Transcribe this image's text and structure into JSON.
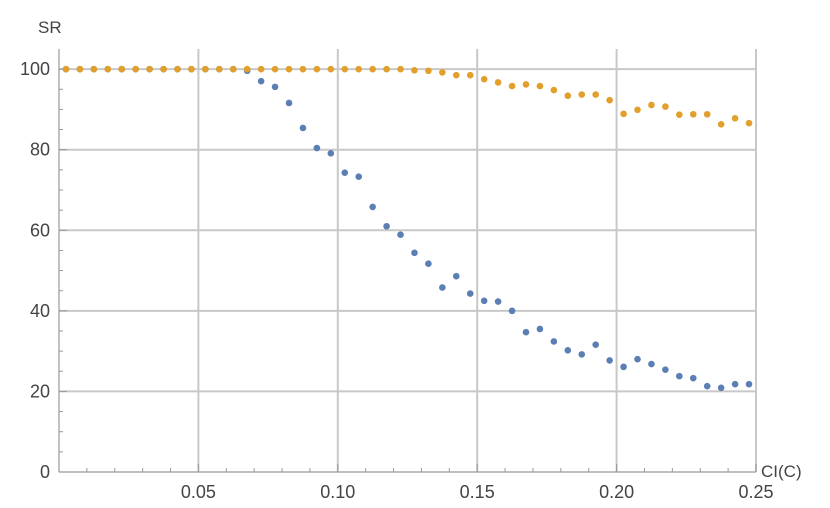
{
  "chart_data": {
    "type": "scatter",
    "xlabel": "CI(C)",
    "ylabel": "SR",
    "xlim": [
      0,
      0.25
    ],
    "ylim": [
      0,
      105
    ],
    "x_ticks": [
      0.05,
      0.1,
      0.15,
      0.2,
      0.25
    ],
    "x_tick_labels": [
      "0.05",
      "0.10",
      "0.15",
      "0.20",
      "0.25"
    ],
    "y_ticks": [
      0,
      20,
      40,
      60,
      80,
      100
    ],
    "y_tick_labels": [
      "0",
      "20",
      "40",
      "60",
      "80",
      "100"
    ],
    "grid": true,
    "series": [
      {
        "color": "#5b7fb4",
        "x": [
          0.0025,
          0.0075,
          0.0125,
          0.0175,
          0.0225,
          0.0275,
          0.0325,
          0.0375,
          0.0425,
          0.0475,
          0.0525,
          0.0575,
          0.0625,
          0.0675,
          0.0725,
          0.0775,
          0.0825,
          0.0875,
          0.0925,
          0.0975,
          0.1025,
          0.1075,
          0.1125,
          0.1175,
          0.1225,
          0.1275,
          0.1325,
          0.1375,
          0.1425,
          0.1475,
          0.1525,
          0.1575,
          0.1625,
          0.1675,
          0.1725,
          0.1775,
          0.1825,
          0.1875,
          0.1925,
          0.1975,
          0.2025,
          0.2075,
          0.2125,
          0.2175,
          0.2225,
          0.2275,
          0.2325,
          0.2375,
          0.2425,
          0.2475
        ],
        "y": [
          100,
          100,
          100,
          100,
          100,
          100,
          100,
          100,
          100,
          100,
          100,
          100,
          100,
          99.6,
          97.0,
          95.6,
          91.6,
          85.4,
          80.4,
          79.1,
          74.3,
          73.3,
          65.8,
          61.0,
          58.9,
          54.4,
          51.7,
          45.8,
          48.6,
          44.3,
          42.5,
          42.3,
          40.0,
          34.7,
          35.5,
          32.4,
          30.2,
          29.2,
          31.6,
          27.7,
          26.1,
          28.0,
          26.8,
          25.4,
          23.8,
          23.3,
          21.3,
          20.9,
          21.8,
          21.8
        ]
      },
      {
        "color": "#e19f2b",
        "x": [
          0.0025,
          0.0075,
          0.0125,
          0.0175,
          0.0225,
          0.0275,
          0.0325,
          0.0375,
          0.0425,
          0.0475,
          0.0525,
          0.0575,
          0.0625,
          0.0675,
          0.0725,
          0.0775,
          0.0825,
          0.0875,
          0.0925,
          0.0975,
          0.1025,
          0.1075,
          0.1125,
          0.1175,
          0.1225,
          0.1275,
          0.1325,
          0.1375,
          0.1425,
          0.1475,
          0.1525,
          0.1575,
          0.1625,
          0.1675,
          0.1725,
          0.1775,
          0.1825,
          0.1875,
          0.1925,
          0.1975,
          0.2025,
          0.2075,
          0.2125,
          0.2175,
          0.2225,
          0.2275,
          0.2325,
          0.2375,
          0.2425,
          0.2475
        ],
        "y": [
          100,
          100,
          100,
          100,
          100,
          100,
          100,
          100,
          100,
          100,
          100,
          100,
          100,
          100,
          100,
          100,
          100,
          100,
          100,
          100,
          100,
          100,
          100,
          100,
          100,
          99.7,
          99.6,
          99.2,
          98.5,
          98.5,
          97.5,
          96.7,
          95.8,
          96.2,
          95.8,
          94.8,
          93.4,
          93.7,
          93.7,
          92.3,
          88.9,
          89.9,
          91.1,
          90.7,
          88.7,
          88.8,
          88.8,
          86.3,
          87.8,
          86.6
        ]
      }
    ]
  }
}
